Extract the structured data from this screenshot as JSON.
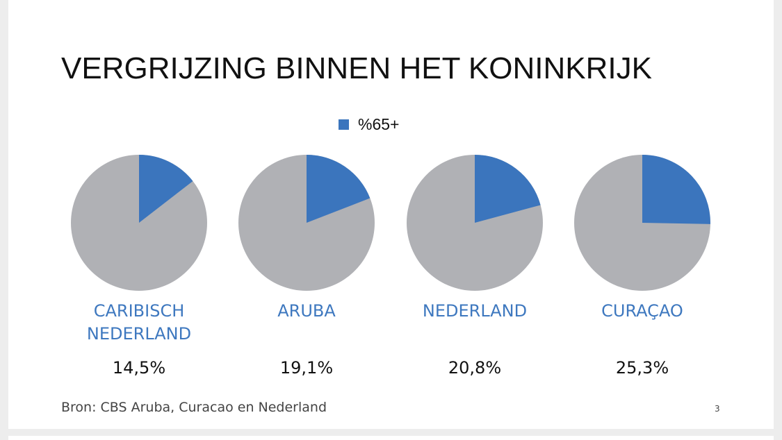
{
  "slide": {
    "title": "VERGRIJZING BINNEN HET KONINKRIJK",
    "source": "Bron: CBS Aruba, Curacao en Nederland",
    "page_number": "3"
  },
  "colors": {
    "highlight": "#3b75bd",
    "remainder": "#b0b1b5",
    "region_label": "#3e78bf"
  },
  "chart_data": {
    "type": "pie",
    "legend": {
      "label": "%65+",
      "position": "top"
    },
    "series": [
      {
        "region": "CARIBISCH NEDERLAND",
        "region_lines": [
          "CARIBISCH",
          "NEDERLAND"
        ],
        "value": 14.5,
        "value_label": "14,5%"
      },
      {
        "region": "ARUBA",
        "region_lines": [
          "ARUBA"
        ],
        "value": 19.1,
        "value_label": "19,1%"
      },
      {
        "region": "NEDERLAND",
        "region_lines": [
          "NEDERLAND"
        ],
        "value": 20.8,
        "value_label": "20,8%"
      },
      {
        "region": "CURAÇAO",
        "region_lines": [
          "CURAÇAO"
        ],
        "value": 25.3,
        "value_label": "25,3%"
      }
    ]
  }
}
